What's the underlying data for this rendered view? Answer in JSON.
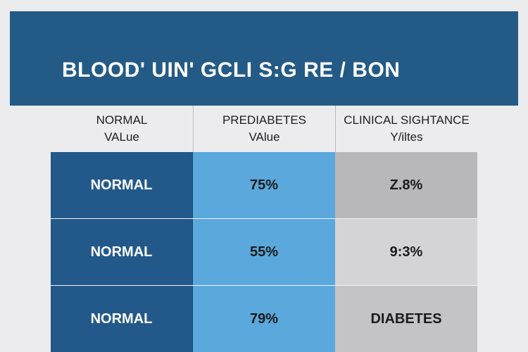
{
  "chart_data": {
    "type": "table",
    "title": "BLOOD' UIN' GCLI S:G RE / BON",
    "columns": [
      {
        "line1": "NORMAL",
        "line2": "VALue"
      },
      {
        "line1": "PREDIABETES",
        "line2": "VAlue"
      },
      {
        "line1": "CLINICAL SIGHTANCE",
        "line2": "Y/iltes"
      }
    ],
    "rows": [
      {
        "normal": "NORMAL",
        "prediabetes": "75%",
        "clinical": "Z.8%"
      },
      {
        "normal": "NORMAL",
        "prediabetes": "55%",
        "clinical": "9:3%"
      },
      {
        "normal": "NORMAL",
        "prediabetes": "79%",
        "clinical": "DIABETES"
      }
    ]
  },
  "colors": {
    "banner": "#245b86",
    "normal_col": "#23598a",
    "prediabetes_col": "#5aa8dc",
    "clinical_col": "#c4c4c6",
    "background": "#ececee"
  }
}
